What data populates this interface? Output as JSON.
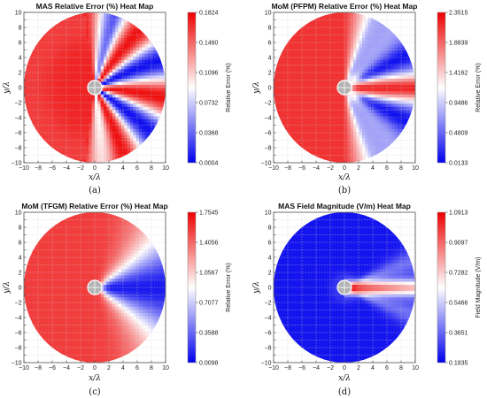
{
  "chart_data": [
    {
      "type": "heatmap",
      "title": "MAS Relative Error (%) Heat Map",
      "panel_label": "(a)",
      "panel_letter": "a",
      "xlabel": "x/λ",
      "ylabel": "y/λ",
      "xlim": [
        -10,
        10
      ],
      "ylim": [
        -10,
        10
      ],
      "x_ticks": [
        -10,
        -8,
        -6,
        -4,
        -2,
        0,
        2,
        4,
        6,
        8,
        10
      ],
      "y_ticks": [
        -10,
        -9,
        -8,
        -7,
        -6,
        -5,
        -4,
        -3,
        -2,
        -1,
        0,
        1,
        2,
        3,
        4,
        5,
        6,
        7,
        8,
        9,
        10
      ],
      "grid": true,
      "domain_radius": 10,
      "scatterer_radius": 1,
      "colorbar": {
        "label": "Relative Error (%)",
        "ticks": [
          0.1824,
          0.146,
          0.1096,
          0.0732,
          0.0368,
          0.0004
        ],
        "min": 0.0004,
        "max": 0.1824,
        "colors": [
          "#0000ee",
          "#ffffff",
          "#ee0000"
        ]
      },
      "pattern": "red sector on the left half (x<0); alternating red/blue/white lobes radiating to the right"
    },
    {
      "type": "heatmap",
      "title": "MoM (PFPM) Relative Error (%) Heat Map",
      "panel_label": "(b)",
      "panel_letter": "b",
      "xlabel": "x/λ",
      "ylabel": "y/λ",
      "xlim": [
        -10,
        10
      ],
      "ylim": [
        -10,
        10
      ],
      "x_ticks": [
        -10,
        -8,
        -6,
        -4,
        -2,
        0,
        2,
        4,
        6,
        8,
        10
      ],
      "y_ticks": [
        -10,
        -9,
        -8,
        -7,
        -6,
        -5,
        -4,
        -3,
        -2,
        -1,
        0,
        1,
        2,
        3,
        4,
        5,
        6,
        7,
        8,
        9,
        10
      ],
      "grid": true,
      "domain_radius": 10,
      "scatterer_radius": 1,
      "colorbar": {
        "label": "Relative Error (%)",
        "ticks": [
          2.3515,
          1.8839,
          1.4162,
          0.9486,
          0.4809,
          0.0133
        ],
        "min": 0.0133,
        "max": 2.3515,
        "colors": [
          "#0000ee",
          "#ffffff",
          "#ee0000"
        ]
      },
      "pattern": "red on the left, blue lobes above and below the forward (+x) direction, red streak along +x axis"
    },
    {
      "type": "heatmap",
      "title": "MoM (TFGM) Relative Error (%) Heat Map",
      "panel_label": "(c)",
      "panel_letter": "c",
      "xlabel": "x/λ",
      "ylabel": "y/λ",
      "xlim": [
        -10,
        10
      ],
      "ylim": [
        -10,
        10
      ],
      "x_ticks": [
        -10,
        -8,
        -6,
        -4,
        -2,
        0,
        2,
        4,
        6,
        8,
        10
      ],
      "y_ticks": [
        -10,
        -9,
        -8,
        -7,
        -6,
        -5,
        -4,
        -3,
        -2,
        -1,
        0,
        1,
        2,
        3,
        4,
        5,
        6,
        7,
        8,
        9,
        10
      ],
      "grid": true,
      "domain_radius": 10,
      "scatterer_radius": 1,
      "colorbar": {
        "label": "Relative Error (%)",
        "ticks": [
          1.7545,
          1.4056,
          1.0567,
          0.7077,
          0.3588,
          0.0098
        ],
        "min": 0.0098,
        "max": 1.7545,
        "colors": [
          "#0000ee",
          "#ffffff",
          "#ee0000"
        ]
      },
      "pattern": "red on the left, deep blue wedge around the forward (+x) direction"
    },
    {
      "type": "heatmap",
      "title": "MAS Field Magnitude (V/m) Heat Map",
      "panel_label": "(d)",
      "panel_letter": "d",
      "xlabel": "x/λ",
      "ylabel": "y/λ",
      "xlim": [
        -10,
        10
      ],
      "ylim": [
        -10,
        10
      ],
      "x_ticks": [
        -10,
        -8,
        -6,
        -4,
        -2,
        0,
        2,
        4,
        6,
        8,
        10
      ],
      "y_ticks": [
        -10,
        -9,
        -8,
        -7,
        -6,
        -5,
        -4,
        -3,
        -2,
        -1,
        0,
        1,
        2,
        3,
        4,
        5,
        6,
        7,
        8,
        9,
        10
      ],
      "grid": true,
      "domain_radius": 10,
      "scatterer_radius": 1,
      "colorbar": {
        "label": "Field Magnitude (V/m)",
        "ticks": [
          1.0913,
          0.9097,
          0.7282,
          0.5466,
          0.3651,
          0.1835
        ],
        "min": 0.1835,
        "max": 1.0913,
        "colors": [
          "#0000ee",
          "#ffffff",
          "#ee0000"
        ]
      },
      "pattern": "mostly blue field; bright red beam along +x axis behind the scatterer, faint white side lobes"
    }
  ]
}
